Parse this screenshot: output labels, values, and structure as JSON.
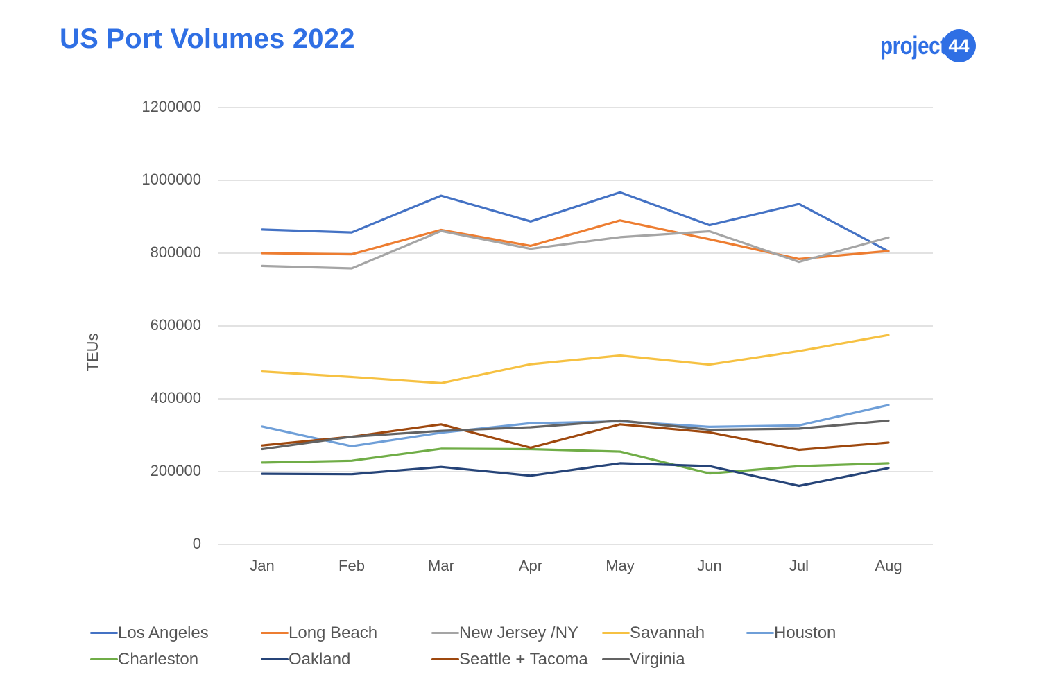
{
  "header": {
    "title": "US Port Volumes 2022"
  },
  "logo": {
    "word": "project",
    "badge": "44"
  },
  "chart_data": {
    "type": "line",
    "title": "US Port Volumes 2022",
    "xlabel": "",
    "ylabel": "TEUs",
    "ylim": [
      0,
      1200000
    ],
    "yticks": [
      0,
      200000,
      400000,
      600000,
      800000,
      1000000,
      1200000
    ],
    "ytick_labels": [
      "0",
      "200000",
      "400000",
      "600000",
      "800000",
      "1000000",
      "1200000"
    ],
    "grid": true,
    "legend_position": "bottom",
    "categories": [
      "Jan",
      "Feb",
      "Mar",
      "Apr",
      "May",
      "Jun",
      "Jul",
      "Aug"
    ],
    "series": [
      {
        "name": "Los Angeles",
        "color": "#4472c4",
        "values": [
          865000,
          857000,
          958000,
          887000,
          967000,
          877000,
          935000,
          805000
        ]
      },
      {
        "name": "Long Beach",
        "color": "#ed7d31",
        "values": [
          800000,
          797000,
          864000,
          820000,
          890000,
          838000,
          784000,
          806000
        ]
      },
      {
        "name": "New Jersey /NY",
        "color": "#a5a5a5",
        "values": [
          765000,
          758000,
          861000,
          812000,
          844000,
          860000,
          776000,
          843000
        ]
      },
      {
        "name": "Savannah",
        "color": "#f6c142",
        "values": [
          475000,
          460000,
          443000,
          495000,
          519000,
          494000,
          531000,
          575000
        ]
      },
      {
        "name": "Houston",
        "color": "#6f9fd8",
        "values": [
          324000,
          270000,
          307000,
          333000,
          338000,
          323000,
          327000,
          383000
        ]
      },
      {
        "name": "Charleston",
        "color": "#70ad47",
        "values": [
          225000,
          230000,
          263000,
          262000,
          255000,
          195000,
          215000,
          223000
        ]
      },
      {
        "name": "Oakland",
        "color": "#264478",
        "values": [
          194000,
          193000,
          213000,
          189000,
          223000,
          215000,
          161000,
          210000
        ]
      },
      {
        "name": "Seattle + Tacoma",
        "color": "#9e480e",
        "values": [
          272000,
          296000,
          330000,
          266000,
          330000,
          308000,
          260000,
          280000
        ]
      },
      {
        "name": "Virginia",
        "color": "#636363",
        "values": [
          262000,
          296000,
          312000,
          322000,
          340000,
          315000,
          318000,
          340000
        ]
      }
    ]
  }
}
